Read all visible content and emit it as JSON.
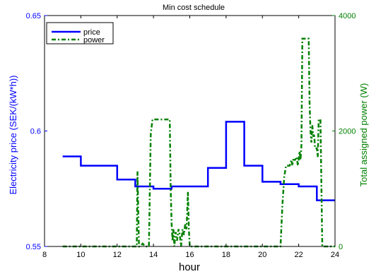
{
  "chart_data": {
    "type": "line",
    "title": "Min cost schedule",
    "xlabel": "hour",
    "ylabel_left": "Electricity price (SEK/(kW*h))",
    "ylabel_right": "Total assigned power (W)",
    "xlim": [
      8,
      24
    ],
    "ylim_left": [
      0.55,
      0.65
    ],
    "ylim_right": [
      0,
      4000
    ],
    "x_ticks": [
      8,
      10,
      12,
      14,
      16,
      18,
      20,
      22,
      24
    ],
    "y_left_ticks": [
      0.55,
      0.6,
      0.65
    ],
    "y_right_ticks": [
      0,
      2000,
      4000
    ],
    "grid": false,
    "legend_placement": "top-left",
    "colors": {
      "price": "#0000ff",
      "power": "#008000",
      "axis_left": "#0000ff",
      "axis_right": "#008000",
      "frame": "#000000"
    },
    "series": [
      {
        "name": "price",
        "axis": "left",
        "style": "solid",
        "x": [
          9.0,
          10.0,
          10.0,
          12.0,
          12.0,
          13.0,
          13.0,
          14.0,
          14.0,
          15.0,
          15.0,
          16.0,
          16.0,
          17.0,
          17.0,
          18.0,
          18.0,
          19.0,
          19.0,
          20.0,
          20.0,
          21.0,
          21.0,
          22.0,
          22.0,
          23.0,
          23.0,
          24.0
        ],
        "y": [
          0.589,
          0.589,
          0.585,
          0.585,
          0.579,
          0.579,
          0.576,
          0.576,
          0.575,
          0.575,
          0.576,
          0.576,
          0.576,
          0.576,
          0.584,
          0.584,
          0.604,
          0.604,
          0.585,
          0.585,
          0.578,
          0.578,
          0.577,
          0.577,
          0.576,
          0.576,
          0.57,
          0.57
        ]
      },
      {
        "name": "power",
        "axis": "right",
        "style": "dashdot",
        "x": [
          9.0,
          13.08,
          13.12,
          13.2,
          13.28,
          13.4,
          13.55,
          13.75,
          13.85,
          13.95,
          14.0,
          14.4,
          14.45,
          14.9,
          14.95,
          15.0,
          15.05,
          15.1,
          15.15,
          15.22,
          15.3,
          15.38,
          15.45,
          15.52,
          15.6,
          15.68,
          15.75,
          15.82,
          15.9,
          15.95,
          16.0,
          16.05,
          16.12,
          16.2,
          16.3,
          21.0,
          21.1,
          21.2,
          21.3,
          21.4,
          21.5,
          21.6,
          21.65,
          21.7,
          21.8,
          21.9,
          21.95,
          22.0,
          22.05,
          22.1,
          22.15,
          22.2,
          22.3,
          22.55,
          22.6,
          22.65,
          22.7,
          22.75,
          22.8,
          22.85,
          22.9,
          23.0,
          23.05,
          23.1,
          23.15,
          23.2,
          23.3,
          23.4,
          23.5,
          24.0
        ],
        "y": [
          0,
          0,
          1300,
          0,
          0,
          50,
          0,
          0,
          1950,
          2200,
          2200,
          2200,
          2200,
          2200,
          1000,
          400,
          100,
          300,
          0,
          250,
          100,
          300,
          200,
          0,
          300,
          200,
          400,
          300,
          950,
          300,
          0,
          0,
          0,
          0,
          0,
          0,
          700,
          1200,
          1400,
          1400,
          1400,
          1500,
          1400,
          1500,
          1500,
          1550,
          1400,
          1500,
          1650,
          1500,
          1750,
          3600,
          3600,
          3600,
          2500,
          2000,
          1800,
          2100,
          1900,
          1950,
          1700,
          1700,
          1550,
          2200,
          2200,
          2200,
          0,
          0,
          0,
          0
        ]
      }
    ]
  }
}
